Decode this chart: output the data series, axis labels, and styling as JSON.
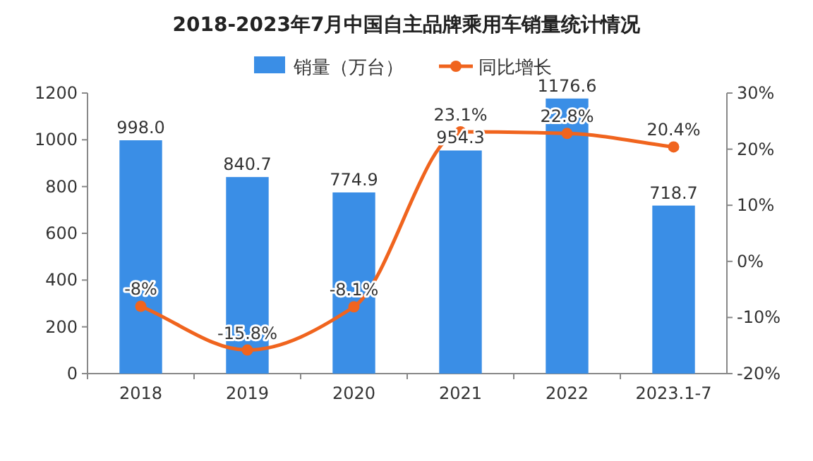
{
  "chart_data": {
    "type": "bar",
    "title": "2018-2023年7月中国自主品牌乘用车销量统计情况",
    "categories": [
      "2018",
      "2019",
      "2020",
      "2021",
      "2022",
      "2023.1-7"
    ],
    "series": [
      {
        "name": "销量（万台）",
        "color": "#3a8ee6",
        "values": [
          998.0,
          840.7,
          774.9,
          954.3,
          1176.6,
          718.7
        ],
        "value_labels": [
          "998.0",
          "840.7",
          "774.9",
          "954.3",
          "1176.6",
          "718.7"
        ]
      },
      {
        "name": "同比增长",
        "type": "line",
        "axis": "y2",
        "color": "#f0641e",
        "marker": "circle",
        "values": [
          -8,
          -15.8,
          -8.1,
          23.1,
          22.8,
          20.4
        ],
        "value_labels": [
          "-8%",
          "-15.8%",
          "-8.1%",
          "23.1%",
          "22.8%",
          "20.4%"
        ]
      }
    ],
    "ylim": [
      0,
      1200
    ],
    "yticks": [
      0,
      200,
      400,
      600,
      800,
      1000,
      1200
    ],
    "y2lim": [
      -20,
      30
    ],
    "y2ticks": [
      {
        "value": -20,
        "label": "-20%"
      },
      {
        "value": -10,
        "label": "-10%"
      },
      {
        "value": 0,
        "label": "0%"
      },
      {
        "value": 10,
        "label": "10%"
      },
      {
        "value": 20,
        "label": "20%"
      },
      {
        "value": 30,
        "label": "30%"
      }
    ],
    "legend": "top"
  }
}
